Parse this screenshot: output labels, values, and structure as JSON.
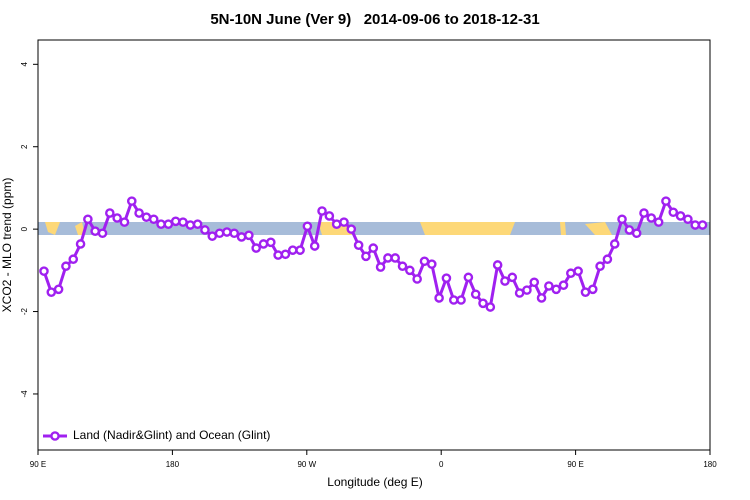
{
  "chart_data": {
    "type": "line",
    "title": "5N-10N June (Ver 9)   2014-09-06 to 2018-12-31",
    "x_label": "Longitude (deg E)",
    "y_label": "XCO2 - MLO trend (ppm)",
    "xlim": [
      90,
      540
    ],
    "ylim": [
      -5.36,
      4.59
    ],
    "xticks": [
      {
        "value": 90,
        "label": "90 E"
      },
      180,
      {
        "value": 270,
        "label": "90 W"
      },
      {
        "value": 360,
        "label": "0"
      },
      {
        "value": 450,
        "label": "90 E"
      },
      {
        "value": 540,
        "label": "180"
      }
    ],
    "yticks": [
      -4,
      -2,
      0,
      2,
      4
    ],
    "legend": "bottom-left",
    "x": [
      94,
      98.9,
      103.8,
      108.7,
      113.6,
      118.5,
      123.4,
      128.3,
      133.2,
      138.1,
      143,
      147.9,
      152.8,
      157.7,
      162.6,
      167.5,
      172.4,
      177.3,
      182.2,
      187.1,
      192,
      196.9,
      201.8,
      206.7,
      211.6,
      216.5,
      221.4,
      226.3,
      231.2,
      236.1,
      241,
      245.9,
      250.8,
      255.7,
      260.6,
      265.5,
      270.4,
      275.3,
      280.2,
      285.1,
      290,
      294.9,
      299.8,
      304.7,
      309.6,
      314.5,
      319.4,
      324.3,
      329.2,
      334.1,
      339,
      343.9,
      348.8,
      353.7,
      358.6,
      363.5,
      368.4,
      373.3,
      378.2,
      383.1,
      388,
      392.9,
      397.8,
      402.7,
      407.6,
      412.5,
      417.4,
      422.3,
      427.2,
      432.1,
      437,
      441.9,
      446.8,
      451.7,
      456.6,
      461.5,
      466.4,
      471.3,
      476.2,
      481.1,
      486,
      490.9,
      495.8,
      500.7,
      505.6,
      510.5,
      515.4,
      520.3,
      525.2,
      530.1,
      535
    ],
    "series": [
      {
        "name": "Land (Nadir&Glint) and Ocean (Glint)",
        "color": "#a020f0",
        "values": [
          -1.02,
          -1.53,
          -1.46,
          -0.9,
          -0.73,
          -0.36,
          0.24,
          -0.05,
          -0.1,
          0.39,
          0.27,
          0.17,
          0.68,
          0.39,
          0.29,
          0.24,
          0.12,
          0.12,
          0.19,
          0.17,
          0.1,
          0.12,
          -0.02,
          -0.17,
          -0.1,
          -0.07,
          -0.1,
          -0.19,
          -0.15,
          -0.46,
          -0.36,
          -0.32,
          -0.63,
          -0.61,
          -0.51,
          -0.51,
          0.07,
          -0.41,
          0.44,
          0.32,
          0.12,
          0.17,
          0,
          -0.39,
          -0.66,
          -0.46,
          -0.92,
          -0.7,
          -0.7,
          -0.9,
          -1.0,
          -1.21,
          -0.78,
          -0.85,
          -1.67,
          -1.19,
          -1.72,
          -1.72,
          -1.17,
          -1.58,
          -1.8,
          -1.89,
          -0.87,
          -1.26,
          -1.17,
          -1.55,
          -1.48,
          -1.29,
          -1.67,
          -1.38,
          -1.46,
          -1.36,
          -1.07,
          -1.02,
          -1.53,
          -1.46,
          -0.9,
          -0.73,
          -0.36,
          0.24,
          -0.02,
          -0.1,
          0.39,
          0.27,
          0.17,
          0.68,
          0.41,
          0.32,
          0.24,
          0.1,
          0.1
        ]
      }
    ]
  }
}
